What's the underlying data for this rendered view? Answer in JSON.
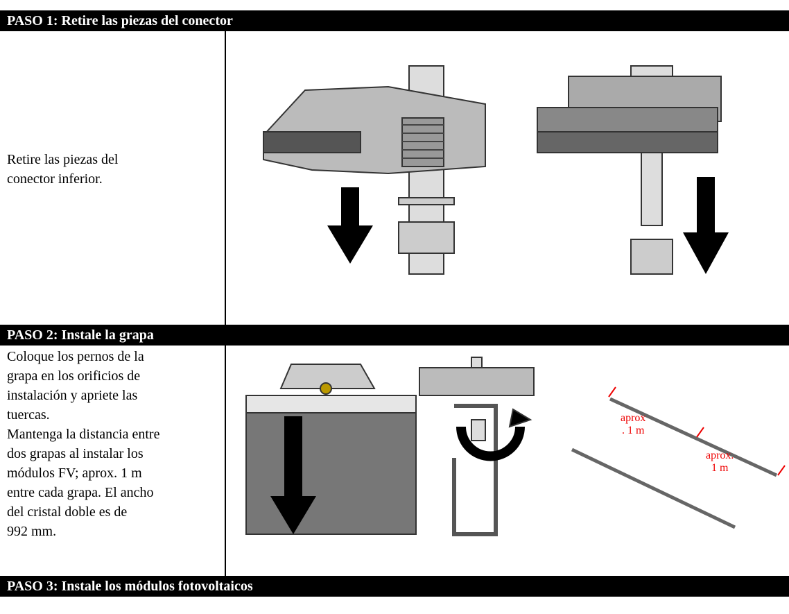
{
  "steps": [
    {
      "title": "PASO 1: Retire las piezas del conector",
      "text": [
        "Retire las piezas del",
        "conector inferior."
      ]
    },
    {
      "title": "PASO 2: Instale la grapa",
      "text": [
        "Coloque los pernos de la",
        "grapa en los orificios de",
        "instalación y apriete las",
        "tuercas.",
        "Mantenga la distancia entre",
        "dos grapas al instalar los",
        "módulos FV; aprox. 1 m",
        "entre cada grapa. El ancho",
        "del cristal doble es de",
        "992 mm."
      ],
      "callouts": [
        [
          "aprox",
          ". 1 m"
        ],
        [
          "aprox.",
          "1 m"
        ]
      ]
    },
    {
      "title": "PASO 3: Instale los módulos fotovoltaicos"
    }
  ]
}
